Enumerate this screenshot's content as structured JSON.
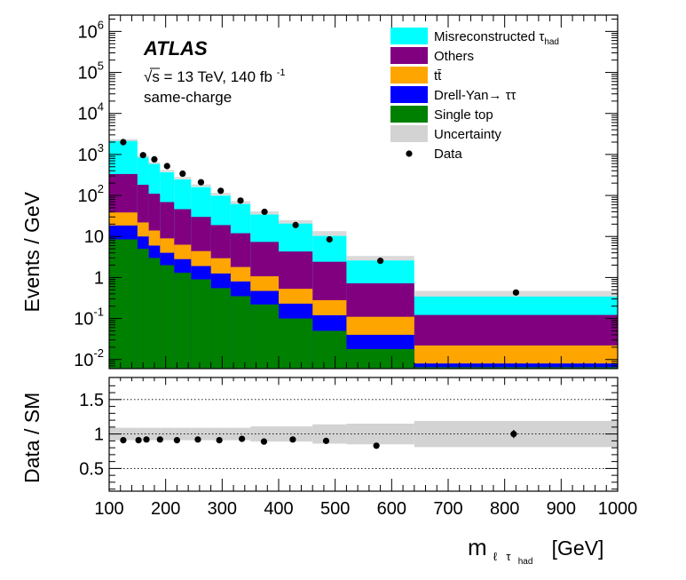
{
  "chart_data": {
    "type": "histogram",
    "title": "ATLAS",
    "annotations": {
      "experiment": "ATLAS",
      "energy_line": "√s = 13 TeV, 140 fb",
      "energy_sup": "-1",
      "region": "same-charge"
    },
    "xlabel": {
      "main": "m",
      "sub_l": "ℓ",
      "sub_tau": "τ",
      "sub_had": "had",
      "unit": "[GeV]"
    },
    "xlim": [
      100,
      1000
    ],
    "xticks": [
      100,
      200,
      300,
      400,
      500,
      600,
      700,
      800,
      900,
      1000
    ],
    "xtick_labels": [
      "100",
      "200",
      "300",
      "400",
      "500",
      "600",
      "700",
      "800",
      "900",
      "1000"
    ],
    "main_panel": {
      "ylabel": "Events / GeV",
      "yscale": "log",
      "ylim": [
        0.006,
        2500000
      ],
      "yticks": [
        {
          "value": 0.01,
          "base": "10",
          "exp": "-2"
        },
        {
          "value": 0.1,
          "base": "10",
          "exp": "-1"
        },
        {
          "value": 1,
          "base": "1",
          "exp": ""
        },
        {
          "value": 10,
          "base": "10",
          "exp": ""
        },
        {
          "value": 100,
          "base": "10",
          "exp": "2"
        },
        {
          "value": 1000,
          "base": "10",
          "exp": "3"
        },
        {
          "value": 10000,
          "base": "10",
          "exp": "4"
        },
        {
          "value": 100000,
          "base": "10",
          "exp": "5"
        },
        {
          "value": 1000000,
          "base": "10",
          "exp": "6"
        }
      ],
      "bin_edges": [
        100,
        150,
        170,
        190,
        215,
        245,
        280,
        315,
        350,
        400,
        460,
        520,
        640,
        1000
      ],
      "stack_order": [
        "Single top",
        "Drell-Yan→ττ",
        "tt̄",
        "Others",
        "Misreconstructed τhad"
      ],
      "series": [
        {
          "name": "Single top",
          "color": "#008000",
          "values": [
            8.5,
            5.0,
            3.0,
            2.0,
            1.3,
            0.9,
            0.55,
            0.35,
            0.22,
            0.1,
            0.05,
            0.018,
            0.0065
          ]
        },
        {
          "name": "Drell-Yan→ττ",
          "color": "#0000ff",
          "values": [
            10,
            5,
            3,
            2,
            1.5,
            1.0,
            0.7,
            0.45,
            0.25,
            0.13,
            0.07,
            0.022,
            0.0015
          ]
        },
        {
          "name": "tt̄",
          "color": "#ffa500",
          "values": [
            20,
            12,
            8,
            5,
            3.5,
            2.5,
            1.7,
            1.0,
            0.6,
            0.3,
            0.16,
            0.07,
            0.014
          ]
        },
        {
          "name": "Others",
          "color": "#800080",
          "values": [
            295,
            160,
            96,
            60,
            40,
            25.6,
            16,
            10.2,
            6.3,
            3.77,
            2.14,
            0.61,
            0.1
          ]
        },
        {
          "name": "Misreconstructed τhad",
          "color": "#00ffff",
          "values": [
            1900,
            700,
            480,
            300,
            200,
            130,
            80,
            50,
            27,
            16.5,
            7.9,
            1.9,
            0.23
          ]
        }
      ],
      "uncertainty": {
        "name": "Uncertainty",
        "color": "#d3d3d3",
        "total_up": [
          2350,
          930,
          650,
          420,
          282,
          186,
          116,
          73,
          41,
          25,
          13.5,
          3.35,
          0.47
        ],
        "total_down": [
          2100,
          840,
          585,
          375,
          250,
          164,
          101,
          62,
          34.5,
          20.6,
          10.4,
          2.6,
          0.34
        ]
      },
      "data_points": {
        "name": "Data",
        "x": [
          125,
          160,
          180,
          202.5,
          230,
          262.5,
          297.5,
          332.5,
          375,
          430,
          490,
          580,
          820
        ],
        "y": [
          2000,
          960,
          760,
          520,
          340,
          210,
          130,
          75,
          40,
          19,
          8.5,
          2.55,
          0.43
        ]
      }
    },
    "ratio_panel": {
      "ylabel": "Data / SM",
      "ylim": [
        0.17,
        1.82
      ],
      "yticks": [
        0.5,
        1,
        1.5
      ],
      "ytick_labels": [
        "0.5",
        "1",
        "1.5"
      ],
      "reference_lines": [
        0.5,
        1,
        1.5
      ],
      "band_half_width": [
        0.09,
        0.09,
        0.09,
        0.09,
        0.09,
        0.09,
        0.09,
        0.09,
        0.11,
        0.11,
        0.14,
        0.15,
        0.19
      ],
      "data_points": {
        "x": [
          125,
          152,
          166,
          190,
          220,
          257,
          295,
          335,
          374,
          425,
          484,
          573,
          816
        ],
        "y": [
          0.91,
          0.91,
          0.92,
          0.92,
          0.91,
          0.92,
          0.91,
          0.93,
          0.89,
          0.92,
          0.9,
          0.83,
          1.0
        ],
        "err": [
          0.01,
          0.01,
          0.01,
          0.01,
          0.01,
          0.01,
          0.01,
          0.01,
          0.015,
          0.015,
          0.02,
          0.03,
          0.06
        ]
      }
    },
    "legend": {
      "placement": "top-right",
      "entries": [
        {
          "label": "Misreconstructed τ",
          "label_sub": "had",
          "type": "fill",
          "color": "#00ffff"
        },
        {
          "label": "Others",
          "label_sub": "",
          "type": "fill",
          "color": "#800080"
        },
        {
          "label": "tt̄",
          "label_sub": "",
          "type": "fill",
          "color": "#ffa500"
        },
        {
          "label": "Drell-Yan→ ττ",
          "label_sub": "",
          "type": "fill",
          "color": "#0000ff"
        },
        {
          "label": "Single top",
          "label_sub": "",
          "type": "fill",
          "color": "#008000"
        },
        {
          "label": "Uncertainty",
          "label_sub": "",
          "type": "fill",
          "color": "#d3d3d3"
        },
        {
          "label": "Data",
          "label_sub": "",
          "type": "marker",
          "color": "#000000"
        }
      ]
    }
  }
}
